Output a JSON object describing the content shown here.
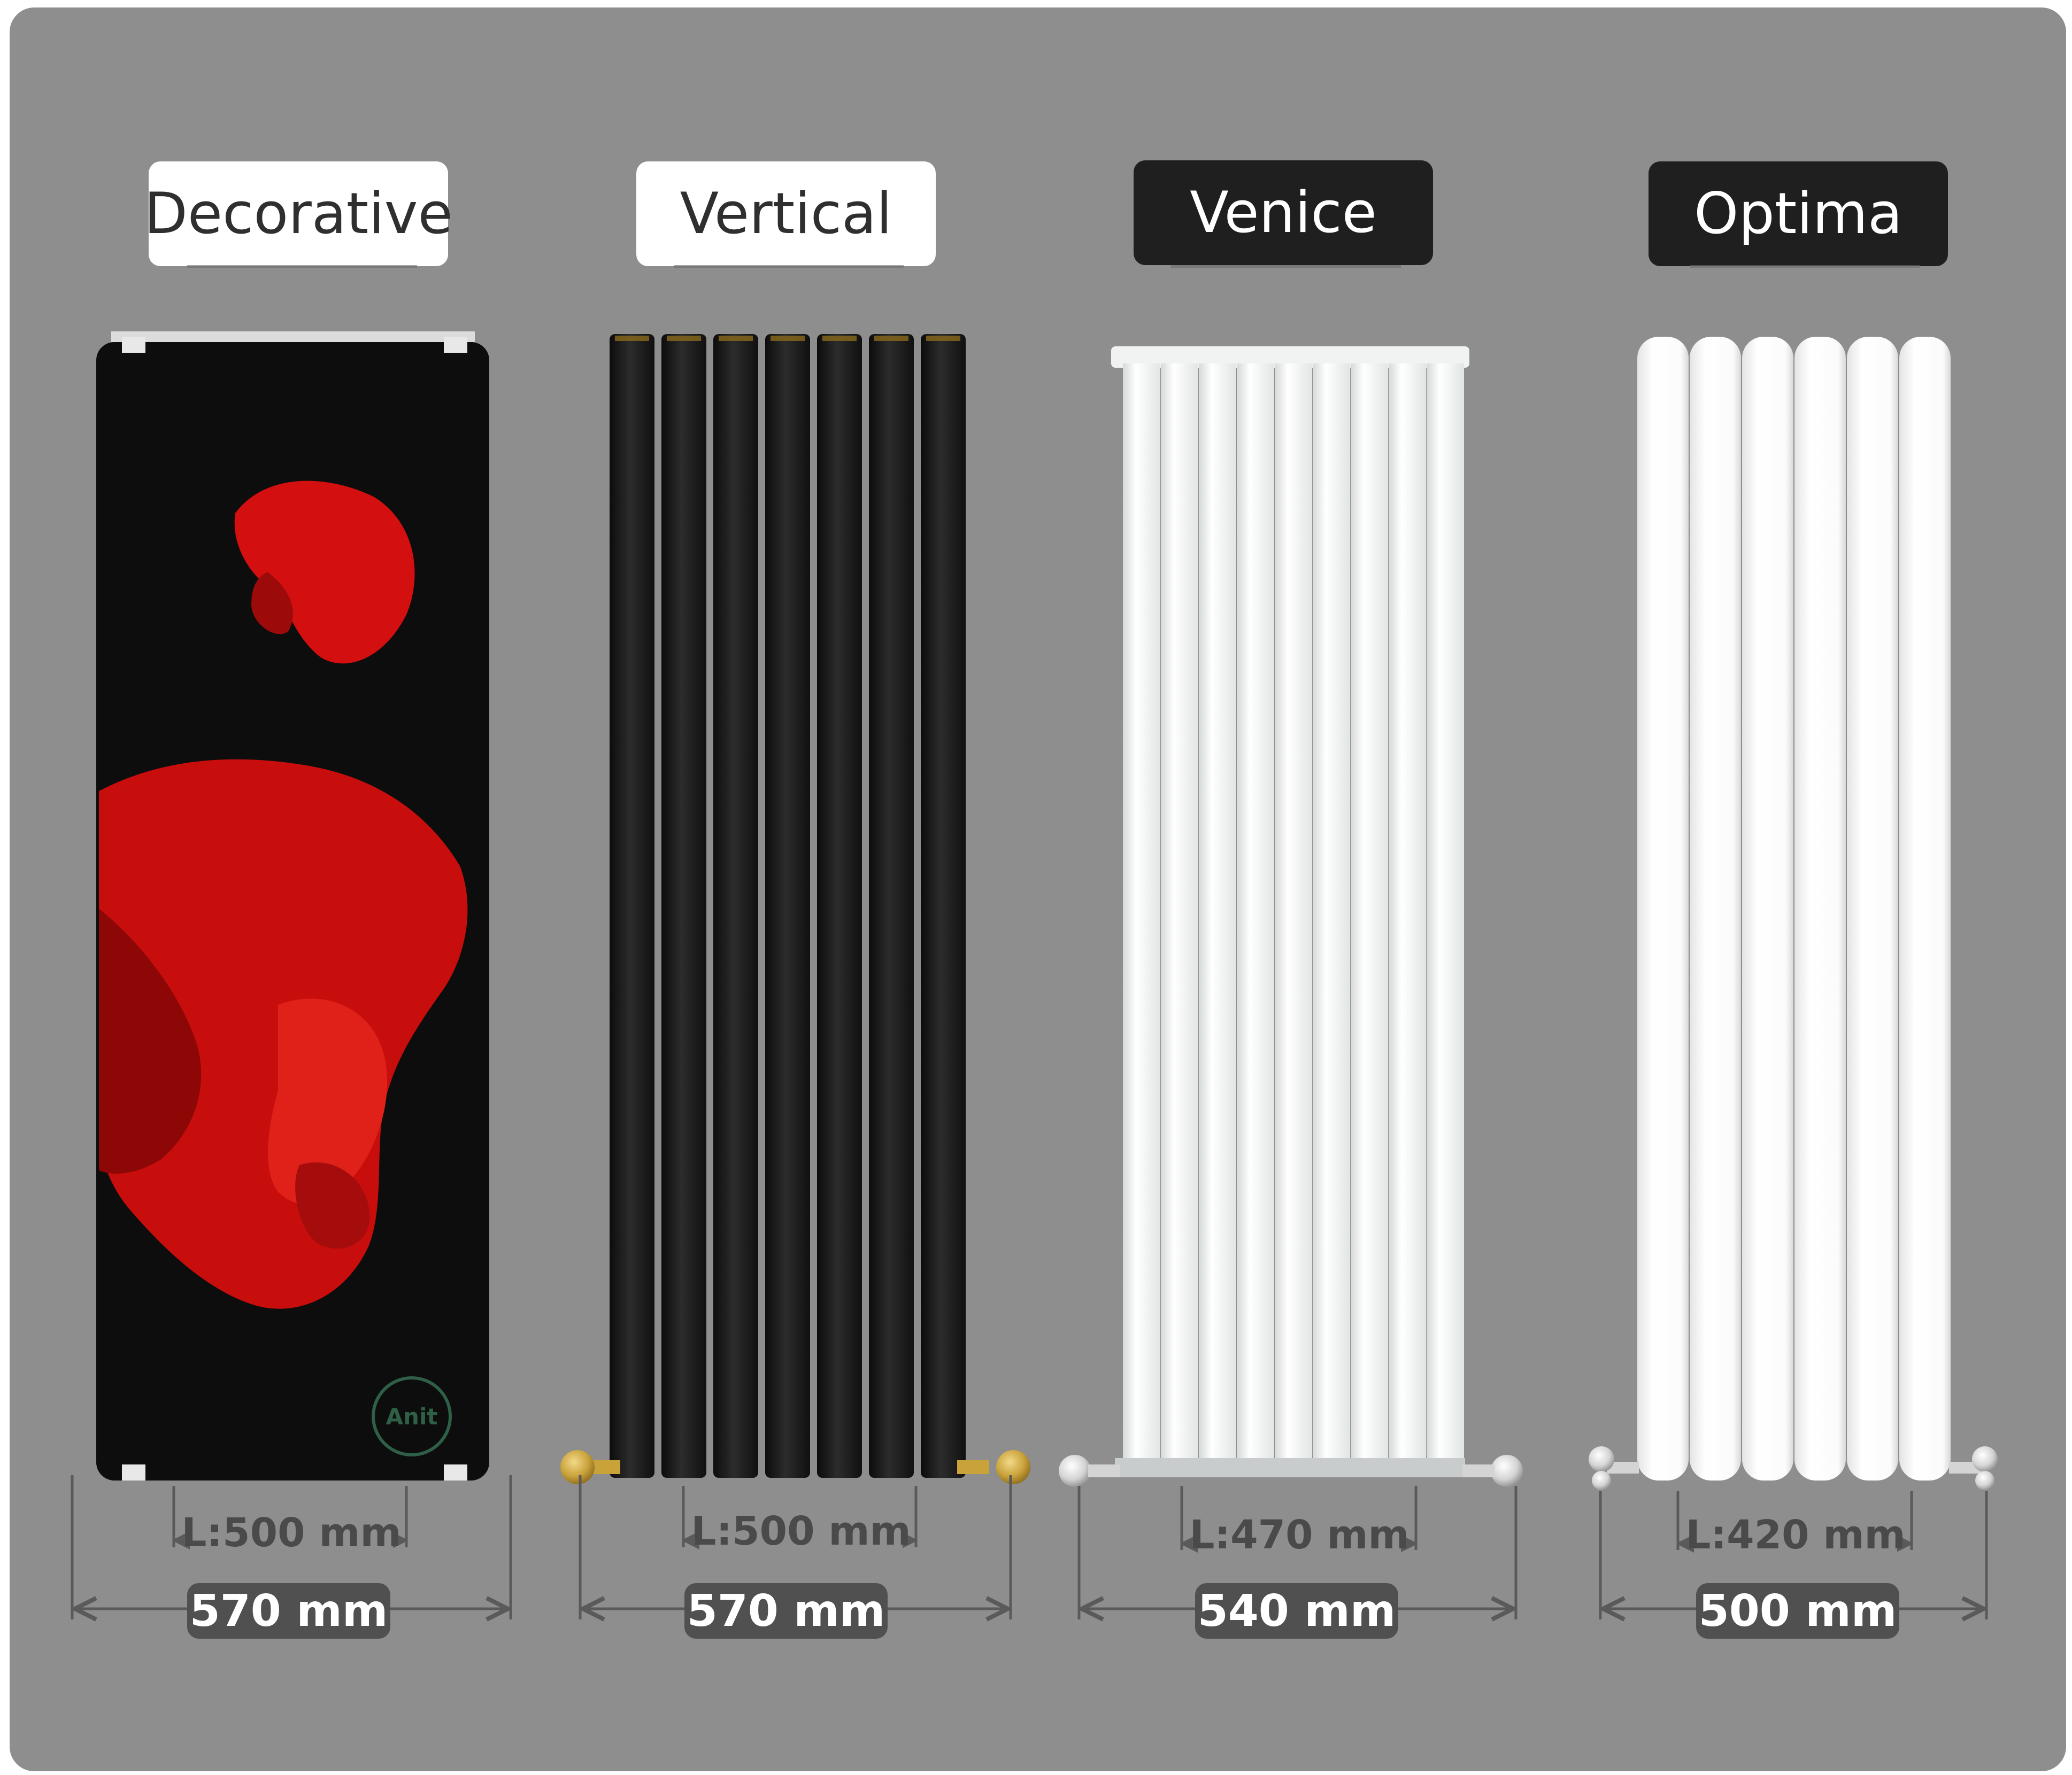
{
  "colors": {
    "panel_background": "#8e8e8e",
    "title_light_bg": "#ffffff",
    "title_dark_bg": "#1f1f1f",
    "dimension_pill_bg": "#505050",
    "fish_red": "#d30f0f",
    "brass_fitting": "#c9a23a"
  },
  "products": [
    {
      "name": "Decorative",
      "inner_length": "L:500 mm",
      "overall_width": "570 mm",
      "finish": "printed glass panel (red betta fish on black)",
      "brand_mark": "Anit"
    },
    {
      "name": "Vertical",
      "inner_length": "L:500 mm",
      "overall_width": "570 mm",
      "finish": "black tubes, brass valves"
    },
    {
      "name": "Venice",
      "inner_length": "L:470 mm",
      "overall_width": "540 mm",
      "finish": "white tubes, chrome valves"
    },
    {
      "name": "Optima",
      "inner_length": "L:420 mm",
      "overall_width": "500 mm",
      "finish": "white oval tubes, chrome valves"
    }
  ]
}
